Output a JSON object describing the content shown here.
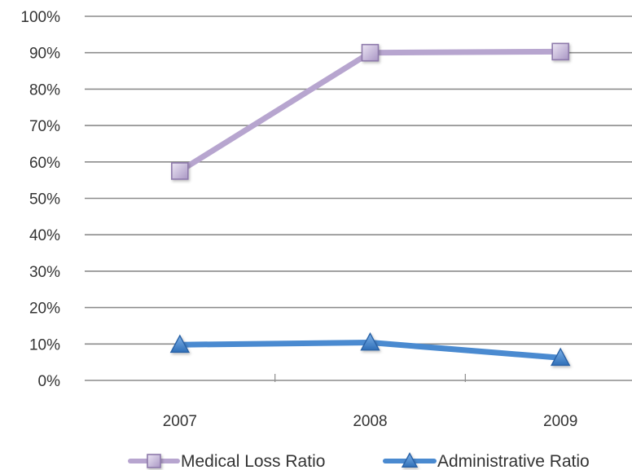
{
  "chart_data": {
    "type": "line",
    "title": "",
    "xlabel": "",
    "ylabel": "",
    "categories": [
      "2007",
      "2008",
      "2009"
    ],
    "ylim": [
      0,
      100
    ],
    "yticks": [
      "0%",
      "10%",
      "20%",
      "30%",
      "40%",
      "50%",
      "60%",
      "70%",
      "80%",
      "90%",
      "100%"
    ],
    "grid": true,
    "legend_position": "bottom",
    "series": [
      {
        "name": "Medical Loss Ratio",
        "values": [
          57.5,
          90,
          90.3
        ],
        "color": "#b7a5cf",
        "marker": "square"
      },
      {
        "name": "Administrative Ratio",
        "values": [
          9.8,
          10.4,
          6.2
        ],
        "color": "#4a8ad0",
        "marker": "triangle"
      }
    ]
  }
}
